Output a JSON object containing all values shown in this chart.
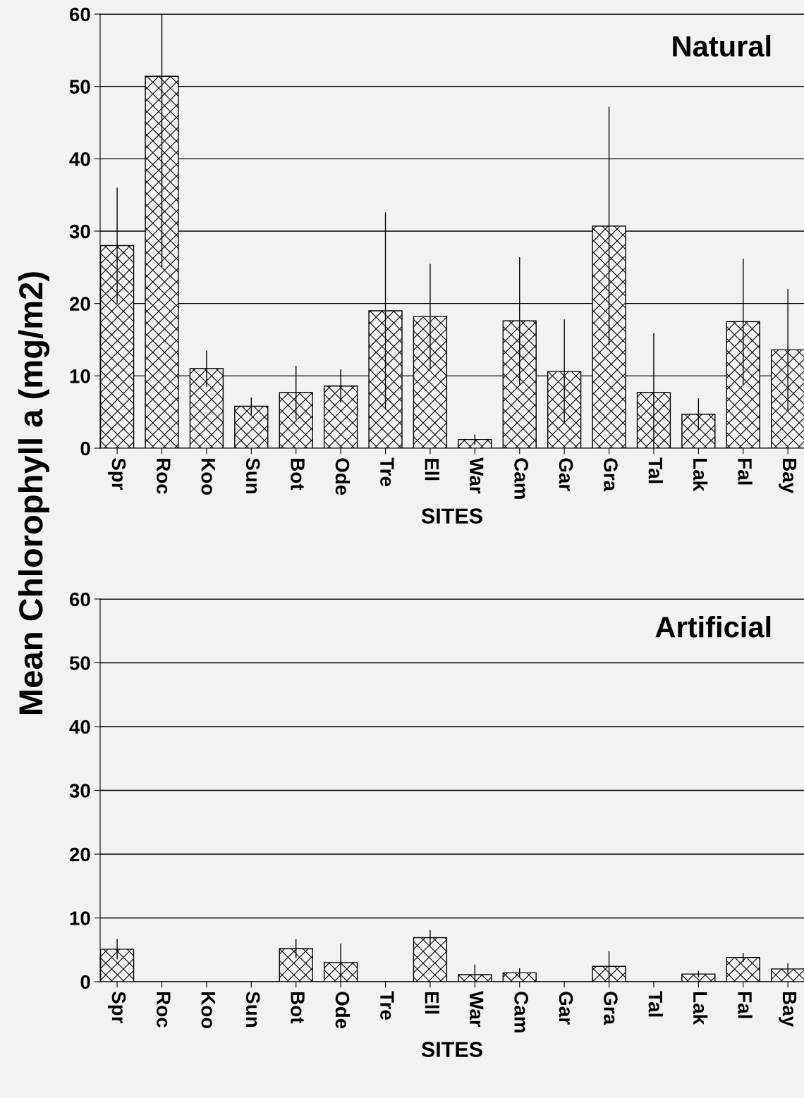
{
  "chart_data": [
    {
      "type": "bar",
      "title": "Natural",
      "xlabel": "SITES",
      "ylabel": "Mean Chlorophyll a (mg/m2)",
      "categories": [
        "Spr",
        "Roc",
        "Koo",
        "Sun",
        "Bot",
        "Ode",
        "Tre",
        "Ell",
        "War",
        "Cam",
        "Gar",
        "Gra",
        "Tal",
        "Lak",
        "Fal",
        "Bay"
      ],
      "values": [
        28,
        51.4,
        11,
        5.8,
        7.7,
        8.6,
        19,
        18.2,
        1.2,
        17.6,
        10.6,
        30.7,
        7.7,
        4.7,
        17.5,
        13.6
      ],
      "errors": [
        8,
        [
          25,
          60
        ],
        2.5,
        1.2,
        3.7,
        2.3,
        13.6,
        7.3,
        0.7,
        8.8,
        7.2,
        16.5,
        8.2,
        2.2,
        8.7,
        8.4
      ],
      "color": "#000000",
      "ylim": [
        0,
        60
      ],
      "yticks": [
        0,
        10,
        20,
        30,
        40,
        50,
        60
      ],
      "grid": "y"
    },
    {
      "type": "bar",
      "title": "Artificial",
      "xlabel": "SITES",
      "categories": [
        "Spr",
        "Roc",
        "Koo",
        "Sun",
        "Bot",
        "Ode",
        "Tre",
        "Ell",
        "War",
        "Cam",
        "Gar",
        "Gra",
        "Tal",
        "Lak",
        "Fal",
        "Bay"
      ],
      "values": [
        5.1,
        null,
        null,
        null,
        5.2,
        3.0,
        null,
        6.9,
        1.1,
        1.4,
        null,
        2.4,
        null,
        1.2,
        3.8,
        2.0
      ],
      "errors": [
        1.6,
        null,
        null,
        null,
        1.5,
        3.0,
        null,
        1.2,
        1.6,
        0.7,
        null,
        2.4,
        null,
        0.5,
        0.7,
        0.9
      ],
      "color": "#000000",
      "ylim": [
        0,
        60
      ],
      "yticks": [
        0,
        10,
        20,
        30,
        40,
        50,
        60
      ],
      "grid": "y"
    }
  ]
}
